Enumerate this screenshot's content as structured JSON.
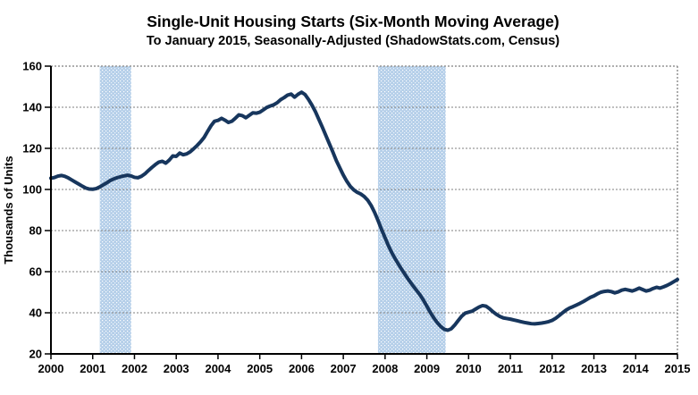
{
  "chart_data": {
    "type": "line",
    "title": "Single-Unit Housing Starts (Six-Month Moving Average)",
    "subtitle": "To January 2015, Seasonally-Adjusted (ShadowStats.com, Census)",
    "ylabel": "Thousands of Units",
    "xlabel": "",
    "ylim": [
      20,
      160
    ],
    "y_ticks": [
      20,
      40,
      60,
      80,
      100,
      120,
      140,
      160
    ],
    "x_tick_labels": [
      "2000",
      "2001",
      "2002",
      "2003",
      "2004",
      "2005",
      "2006",
      "2007",
      "2008",
      "2009",
      "2010",
      "2011",
      "2012",
      "2013",
      "2014",
      "2015"
    ],
    "x_range_years": [
      2000,
      2015
    ],
    "grid": "horizontal-dotted",
    "legend_position": "none",
    "shaded_bands": [
      {
        "start_year": 2001.17,
        "end_year": 2001.92
      },
      {
        "start_year": 2007.83,
        "end_year": 2009.45
      }
    ],
    "series": [
      {
        "name": "Single-unit housing starts, six-month moving average",
        "start_month": "2000-01",
        "end_month": "2015-01",
        "interval": "monthly",
        "values": [
          105.5,
          105.8,
          106.5,
          106.8,
          106.4,
          105.6,
          104.6,
          103.6,
          102.6,
          101.6,
          100.7,
          100.2,
          100.1,
          100.4,
          101.2,
          102.2,
          103.2,
          104.3,
          105.1,
          105.7,
          106.2,
          106.6,
          106.9,
          106.6,
          105.9,
          105.7,
          106.4,
          107.6,
          109.2,
          110.7,
          112.1,
          113.3,
          113.7,
          112.8,
          114.3,
          116.3,
          116.1,
          117.7,
          116.9,
          117.3,
          118.3,
          119.8,
          121.4,
          123.2,
          125.3,
          128.2,
          131.0,
          133.2,
          133.6,
          134.6,
          133.7,
          132.6,
          133.2,
          134.7,
          136.3,
          135.9,
          134.9,
          136.1,
          137.3,
          137.1,
          137.6,
          138.7,
          139.9,
          140.6,
          141.2,
          142.2,
          143.7,
          144.7,
          145.9,
          146.4,
          144.9,
          146.3,
          147.3,
          146.2,
          143.8,
          141.0,
          137.8,
          134.0,
          130.2,
          126.2,
          122.2,
          118.2,
          114.0,
          110.5,
          107.0,
          104.0,
          101.5,
          99.8,
          98.6,
          97.8,
          96.6,
          94.8,
          92.2,
          88.8,
          84.8,
          80.5,
          76.5,
          72.5,
          69.0,
          66.0,
          63.2,
          60.5,
          58.0,
          55.5,
          53.2,
          51.0,
          48.8,
          46.2,
          43.2,
          40.2,
          37.5,
          35.2,
          33.3,
          32.0,
          31.5,
          32.2,
          34.0,
          36.2,
          38.3,
          39.8,
          40.3,
          40.8,
          41.8,
          42.8,
          43.5,
          43.2,
          42.0,
          40.5,
          39.2,
          38.2,
          37.5,
          37.2,
          36.9,
          36.5,
          36.1,
          35.7,
          35.3,
          35.0,
          34.7,
          34.6,
          34.8,
          35.0,
          35.3,
          35.7,
          36.3,
          37.3,
          38.6,
          40.0,
          41.3,
          42.3,
          43.0,
          43.8,
          44.6,
          45.5,
          46.5,
          47.5,
          48.2,
          49.2,
          50.0,
          50.4,
          50.6,
          50.3,
          49.7,
          50.2,
          51.0,
          51.4,
          51.0,
          50.6,
          51.2,
          52.0,
          51.3,
          50.6,
          51.0,
          51.8,
          52.4,
          52.0,
          52.6,
          53.3,
          54.2,
          55.2,
          56.2
        ]
      }
    ],
    "colors": {
      "line": "#17365d",
      "band_fill": "#b7cfe9",
      "band_dot": "#ffffff",
      "gridline": "#7f7f7f",
      "axis": "#000000",
      "text": "#000000",
      "background": "#ffffff"
    }
  }
}
